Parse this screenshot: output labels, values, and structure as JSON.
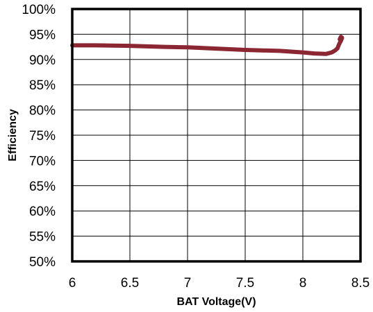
{
  "chart_data": {
    "type": "line",
    "xlabel": "BAT Voltage(V)",
    "ylabel": "Efficiency",
    "xlim": [
      6,
      8.5
    ],
    "ylim": [
      0.5,
      1.0
    ],
    "x_ticks": [
      "6",
      "6.5",
      "7",
      "7.5",
      "8",
      "8.5"
    ],
    "y_ticks": [
      "50%",
      "55%",
      "60%",
      "65%",
      "70%",
      "75%",
      "80%",
      "85%",
      "90%",
      "95%",
      "100%"
    ],
    "grid": true,
    "series": [
      {
        "color": "#8b2633",
        "x": [
          6.0,
          6.2,
          6.5,
          6.8,
          7.0,
          7.2,
          7.5,
          7.8,
          8.0,
          8.1,
          8.2,
          8.25,
          8.28,
          8.3,
          8.31,
          8.32,
          8.33,
          8.34,
          8.33,
          8.32
        ],
        "y": [
          0.928,
          0.928,
          0.927,
          0.925,
          0.924,
          0.922,
          0.919,
          0.917,
          0.914,
          0.912,
          0.911,
          0.914,
          0.918,
          0.922,
          0.928,
          0.933,
          0.937,
          0.943,
          0.945,
          0.94
        ]
      }
    ]
  }
}
